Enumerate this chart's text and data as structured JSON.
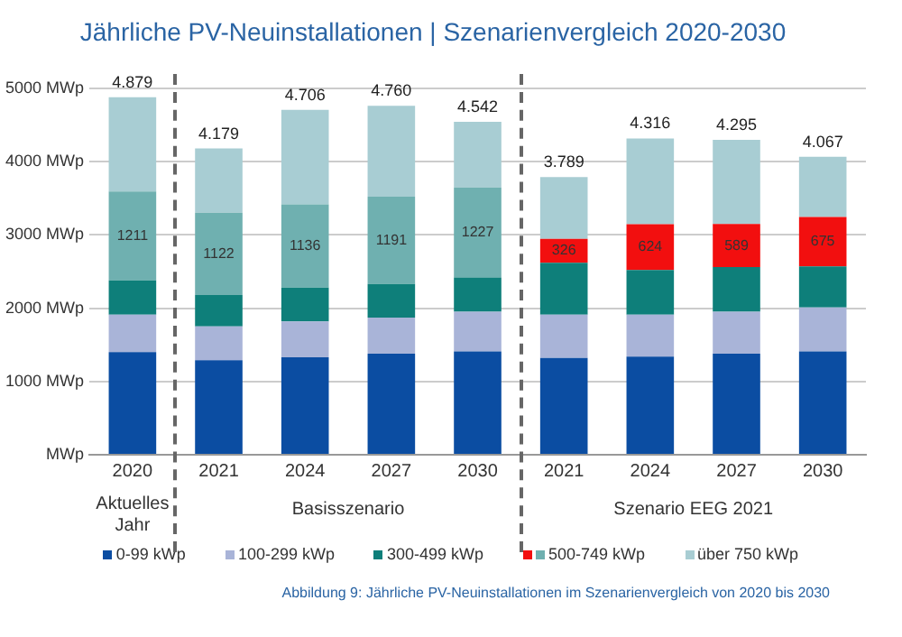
{
  "chart_data": {
    "type": "bar",
    "title": "Jährliche PV-Neuinstallationen | Szenarienvergleich 2020-2030",
    "categories": [
      "2020",
      "2021",
      "2024",
      "2027",
      "2030",
      "2021",
      "2024",
      "2027",
      "2030"
    ],
    "stacked": true,
    "series": [
      {
        "name": "0-99 kWp",
        "color": "#0b4da2",
        "values": [
          1400,
          1290,
          1330,
          1380,
          1410,
          1320,
          1340,
          1380,
          1410
        ]
      },
      {
        "name": "100-299 kWp",
        "color": "#a9b4d8",
        "values": [
          510,
          460,
          490,
          490,
          540,
          590,
          570,
          570,
          600
        ]
      },
      {
        "name": "300-499 kWp",
        "color": "#0e7f7a",
        "values": [
          470,
          430,
          460,
          460,
          470,
          710,
          610,
          610,
          560
        ]
      },
      {
        "name": "500-749 kWp",
        "colors": [
          "#6fb0b0",
          "#6fb0b0",
          "#6fb0b0",
          "#6fb0b0",
          "#6fb0b0",
          "#f20f0f",
          "#f20f0f",
          "#f20f0f",
          "#f20f0f"
        ],
        "values": [
          1211,
          1122,
          1136,
          1191,
          1227,
          326,
          624,
          589,
          675
        ],
        "value_labels": [
          "1211",
          "1122",
          "1136",
          "1191",
          "1227",
          "326",
          "624",
          "589",
          "675"
        ]
      },
      {
        "name": "über 750 kWp",
        "color": "#a8cdd3",
        "values": [
          1288,
          877,
          1290,
          1239,
          895,
          843,
          1172,
          1146,
          822
        ]
      }
    ],
    "totals": [
      "4.879",
      "4.179",
      "4.706",
      "4.760",
      "4.542",
      "3.789",
      "4.316",
      "4.295",
      "4.067"
    ],
    "ylim": [
      0,
      5200
    ],
    "yticks": [
      {
        "value": 0,
        "label": "MWp"
      },
      {
        "value": 1000,
        "label": "1000 MWp"
      },
      {
        "value": 2000,
        "label": "2000 MWp"
      },
      {
        "value": 3000,
        "label": "3000 MWp"
      },
      {
        "value": 4000,
        "label": "4000 MWp"
      },
      {
        "value": 5000,
        "label": "5000 MWp"
      }
    ],
    "grid": "y",
    "legend": "bottom",
    "annotations": [
      "Aktuelles Jahr",
      "Basisszenario",
      "Szenario EEG 2021",
      "Abbildung 9: Jährliche PV-Neuinstallationen im Szenarienvergleich von 2020 bis 2030"
    ]
  }
}
